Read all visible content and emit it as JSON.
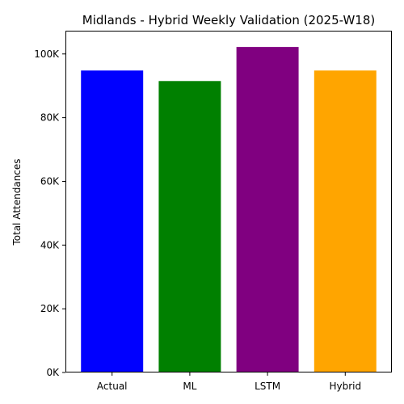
{
  "chart_data": {
    "type": "bar",
    "title": "Midlands - Hybrid Weekly Validation (2025-W18)",
    "xlabel": "",
    "ylabel": "Total Attendances",
    "categories": [
      "Actual",
      "ML",
      "LSTM",
      "Hybrid"
    ],
    "values": [
      94800,
      91500,
      102200,
      94800
    ],
    "colors": [
      "#0000ff",
      "#008000",
      "#800080",
      "#ffa500"
    ],
    "ylim": [
      0,
      107300
    ],
    "yticks": [
      0,
      20000,
      40000,
      60000,
      80000,
      100000
    ],
    "ytick_labels": [
      "0K",
      "20K",
      "40K",
      "60K",
      "80K",
      "100K"
    ],
    "grid": false,
    "legend": "none"
  }
}
